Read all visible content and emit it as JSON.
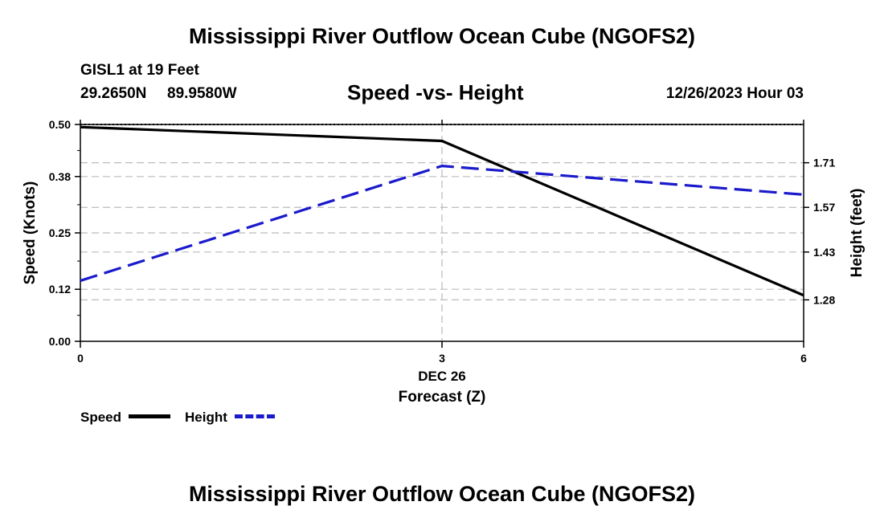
{
  "titles": {
    "main": "Mississippi River Outflow Ocean Cube (NGOFS2)",
    "repeat": "Mississippi River Outflow Ocean Cube (NGOFS2)"
  },
  "station": {
    "name_depth": "GISL1 at 19 Feet",
    "lat": "29.2650N",
    "lon": "89.9580W"
  },
  "date_label": "12/26/2023 Hour 03",
  "legend": {
    "speed_label": "Speed",
    "height_label": "Height"
  },
  "chart_data": {
    "type": "line",
    "title": "Speed -vs- Height",
    "xlabel": "Forecast (Z)",
    "xsublabel": "DEC 26",
    "ylabel": "Speed (Knots)",
    "y2label": "Height (feet)",
    "x": [
      0,
      3,
      6
    ],
    "xticks": [
      "0",
      "3",
      "6"
    ],
    "xlim": [
      0,
      6
    ],
    "ylim": [
      0,
      0.5
    ],
    "y2lim": [
      1.15,
      1.83
    ],
    "yticks": [
      0.0,
      0.12,
      0.25,
      0.38,
      0.5
    ],
    "yticklabels": [
      "0.00",
      "0.12",
      "0.25",
      "0.38",
      "0.50"
    ],
    "y2ticks": [
      1.28,
      1.43,
      1.57,
      1.71
    ],
    "y2ticklabels": [
      "1.28",
      "1.43",
      "1.57",
      "1.71"
    ],
    "grid": true,
    "series": [
      {
        "name": "Speed",
        "axis": "left",
        "color": "#000000",
        "style": "solid",
        "values": [
          0.494,
          0.462,
          0.106
        ]
      },
      {
        "name": "Height",
        "axis": "right",
        "color": "#1a1acc",
        "style": "dashed",
        "values": [
          1.34,
          1.7,
          1.61
        ]
      }
    ]
  }
}
